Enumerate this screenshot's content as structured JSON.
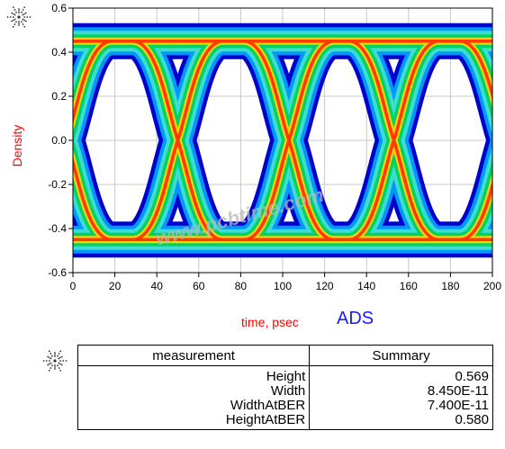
{
  "chart_data": {
    "type": "heatmap",
    "xlabel": "time, psec",
    "ylabel": "Density",
    "xlim": [
      0,
      200
    ],
    "ylim": [
      -0.6,
      0.6
    ],
    "xticks": [
      "0",
      "20",
      "40",
      "60",
      "80",
      "100",
      "120",
      "140",
      "160",
      "180",
      "200"
    ],
    "yticks": [
      "0.6",
      "0.4",
      "0.2",
      "0.0",
      "-0.2",
      "-0.4",
      "-0.6"
    ],
    "grid": true,
    "eye": {
      "high": 0.45,
      "low": -0.45,
      "crossings": [
        -3,
        50,
        103,
        153,
        206
      ],
      "levels": [
        "#0000cd",
        "#00a0ff",
        "#40e0d0",
        "#00d060",
        "#ffd700",
        "#ff3000"
      ]
    }
  },
  "brand": "ADS",
  "watermark": "www.pcbtime.com",
  "table": {
    "headers": [
      "measurement",
      "Summary"
    ],
    "rows": [
      {
        "name": "Height",
        "value": "0.569"
      },
      {
        "name": "Width",
        "value": "8.450E-11"
      },
      {
        "name": "WidthAtBER",
        "value": "7.400E-11"
      },
      {
        "name": "HeightAtBER",
        "value": "0.580"
      }
    ]
  }
}
